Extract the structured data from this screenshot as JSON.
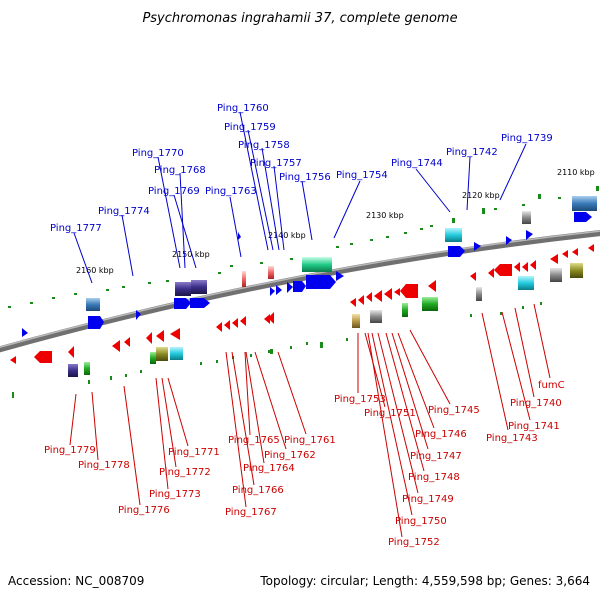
{
  "title": "Psychromonas ingrahamii 37, complete genome",
  "footer": {
    "accession": "Accession: NC_008709",
    "topology": "Topology: circular; Length: 4,559,598 bp; Genes: 3,664"
  },
  "ticks": [
    "2160 kbp",
    "2150 kbp",
    "2140 kbp",
    "2130 kbp",
    "2120 kbp",
    "2110 kbp"
  ],
  "top_labels": [
    "Ping_1760",
    "Ping_1759",
    "Ping_1758",
    "Ping_1757",
    "Ping_1770",
    "Ping_1768",
    "Ping_1769",
    "Ping_1763",
    "Ping_1756",
    "Ping_1754",
    "Ping_1744",
    "Ping_1742",
    "Ping_1739",
    "Ping_1774",
    "Ping_1777"
  ],
  "bottom_labels": [
    "Ping_1753",
    "Ping_1751",
    "Ping_1745",
    "Ping_1746",
    "Ping_1747",
    "Ping_1748",
    "Ping_1749",
    "Ping_1750",
    "Ping_1752",
    "fumC",
    "Ping_1740",
    "Ping_1741",
    "Ping_1743",
    "Ping_1765",
    "Ping_1761",
    "Ping_1762",
    "Ping_1764",
    "Ping_1766",
    "Ping_1767",
    "Ping_1771",
    "Ping_1772",
    "Ping_1773",
    "Ping_1776",
    "Ping_1779",
    "Ping_1778"
  ],
  "colors": {
    "forward": "#0000ee",
    "reverse": "#ee0000",
    "backbone": "#808080",
    "marker": "#1a8a1a"
  }
}
